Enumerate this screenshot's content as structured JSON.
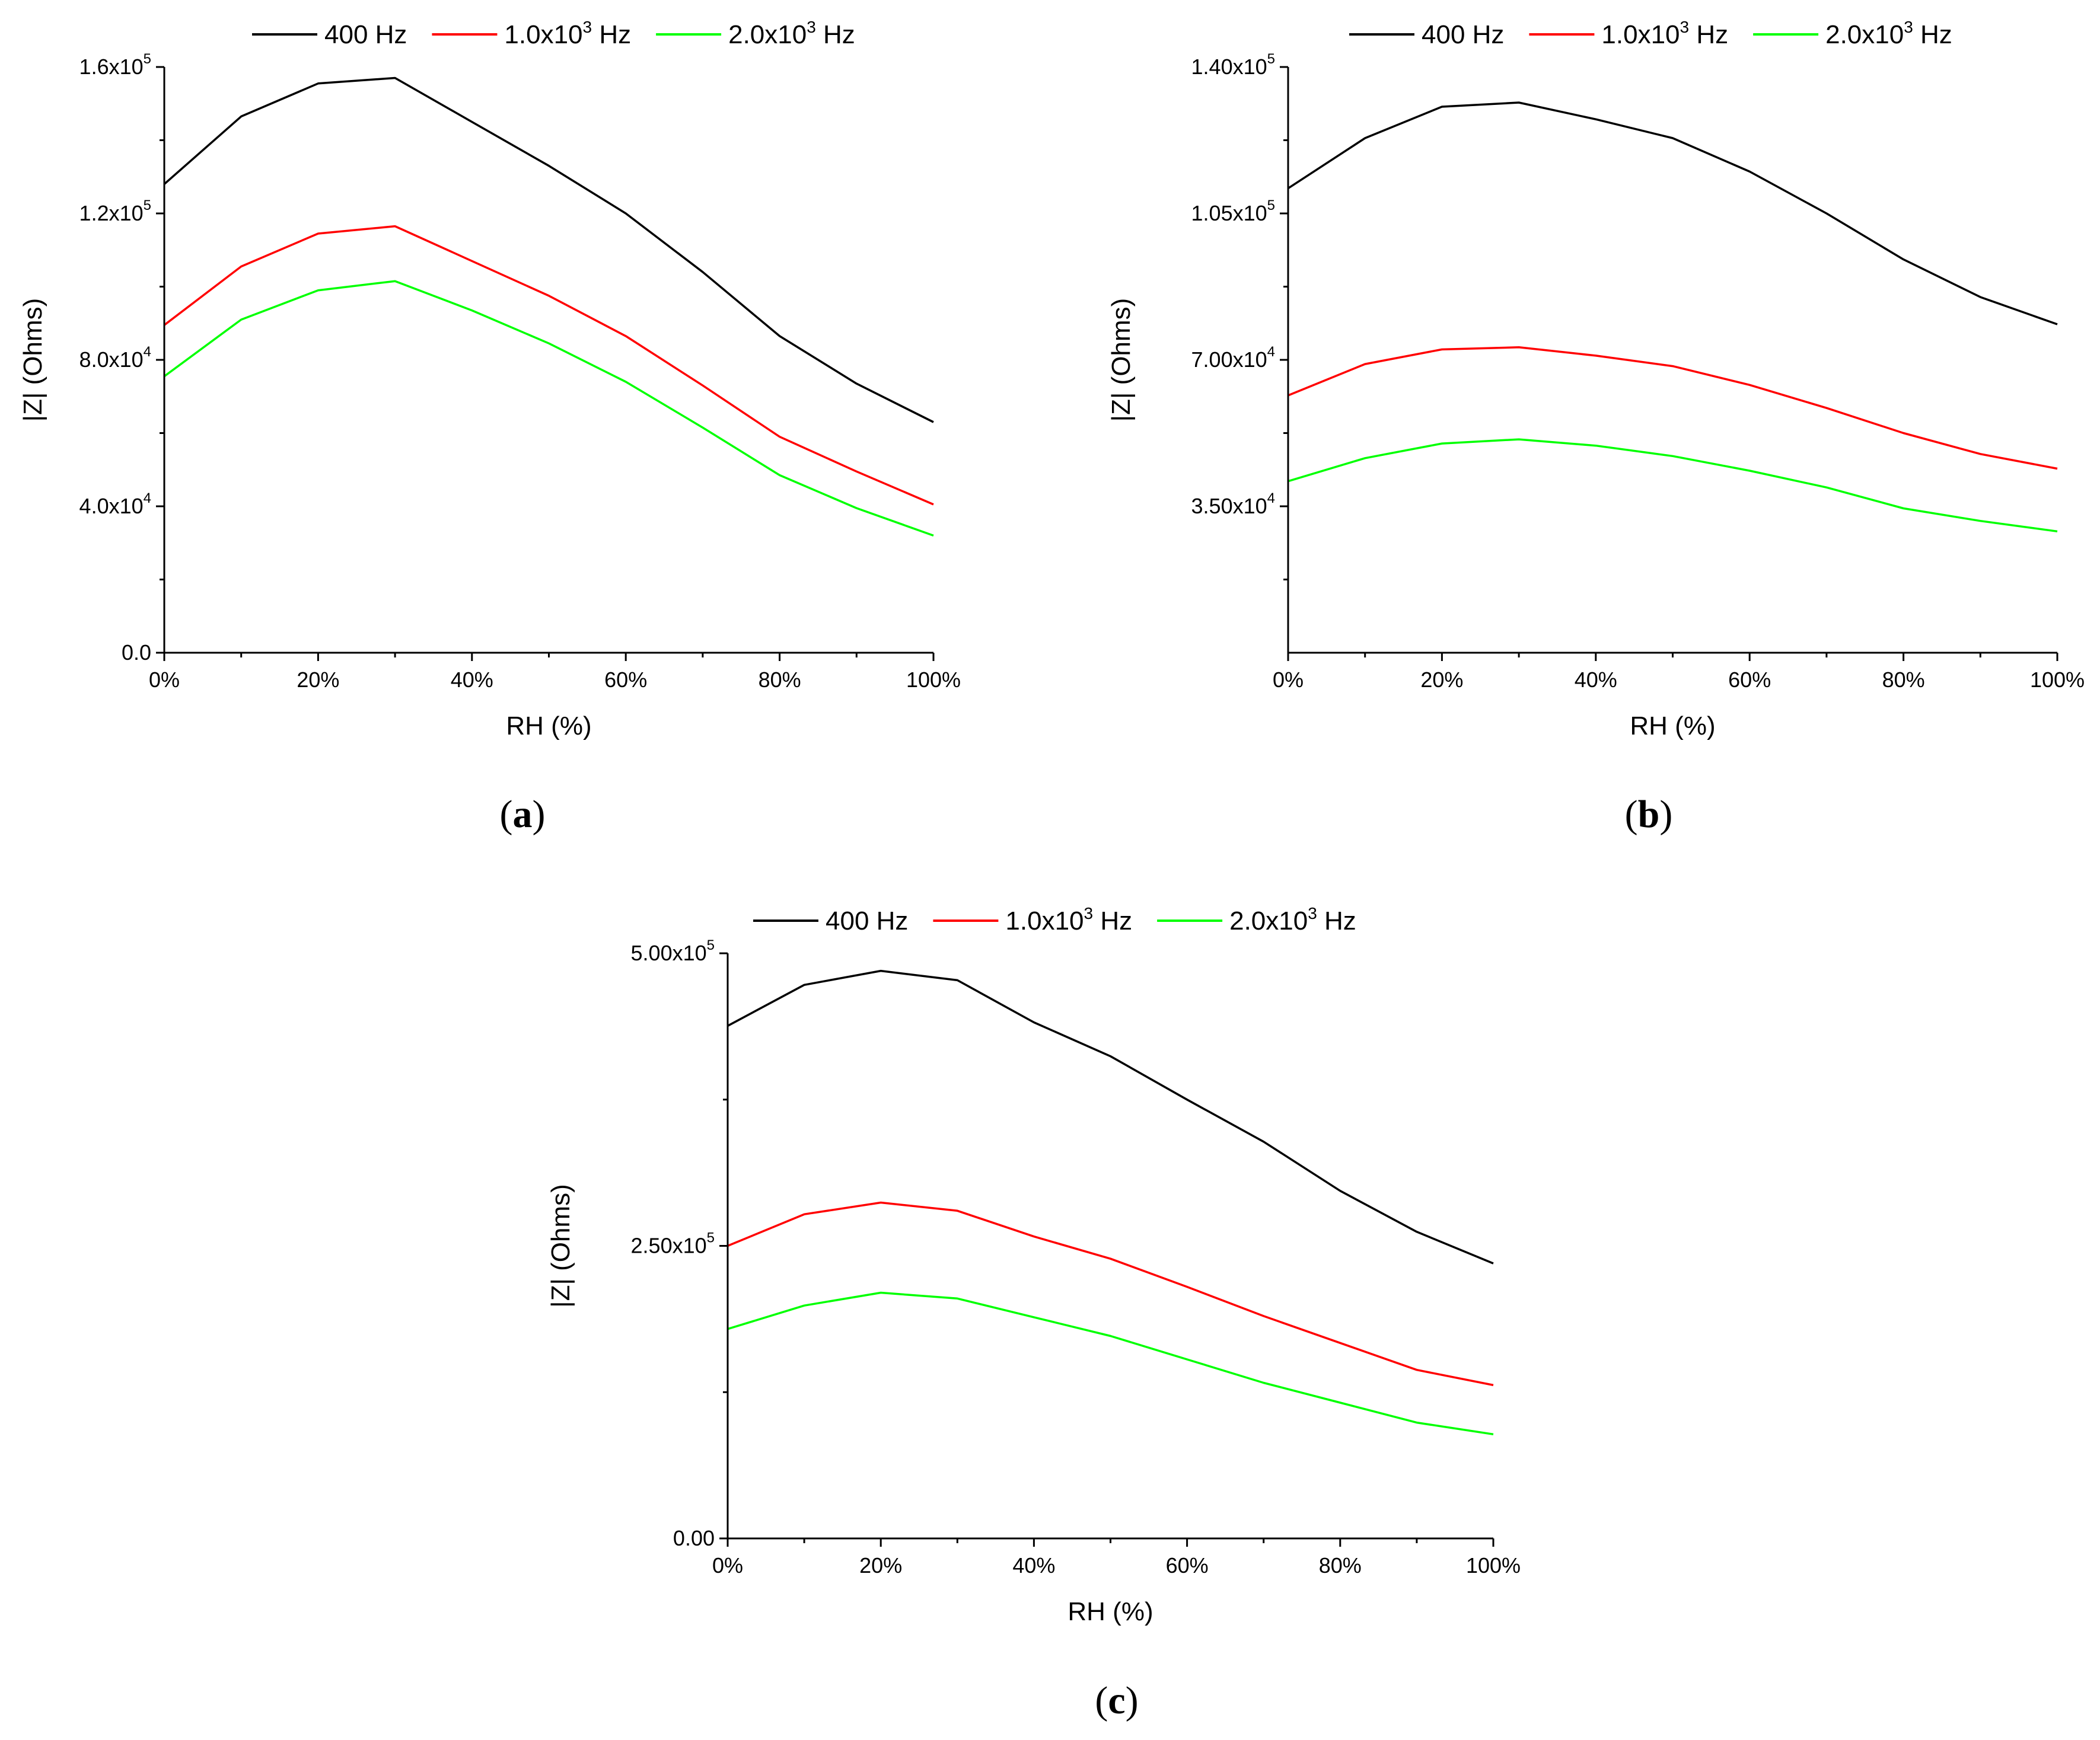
{
  "chart_data": [
    {
      "panel": "a",
      "type": "line",
      "xlabel": "RH (%)",
      "ylabel": "|Z| (Ohms)",
      "x": [
        0,
        10,
        20,
        30,
        40,
        50,
        60,
        70,
        80,
        90,
        100
      ],
      "x_tick_values": [
        0,
        20,
        40,
        60,
        80,
        100
      ],
      "x_tick_labels": [
        "0%",
        "20%",
        "40%",
        "60%",
        "80%",
        "100%"
      ],
      "xlim": [
        0,
        100
      ],
      "ylim": [
        0,
        160000
      ],
      "y_ticks": [
        {
          "value": 0,
          "mantissa": "0.0",
          "exp": ""
        },
        {
          "value": 40000,
          "mantissa": "4.0x10",
          "exp": "4"
        },
        {
          "value": 80000,
          "mantissa": "8.0x10",
          "exp": "4"
        },
        {
          "value": 120000,
          "mantissa": "1.2x10",
          "exp": "5"
        },
        {
          "value": 160000,
          "mantissa": "1.6x10",
          "exp": "5"
        }
      ],
      "series": [
        {
          "name": "400 Hz",
          "color": "#000000",
          "values": [
            128000,
            146500,
            155500,
            157000,
            145000,
            133000,
            120000,
            104000,
            86500,
            73500,
            63000
          ]
        },
        {
          "name": "1.0x10^3 Hz",
          "color": "#ff0000",
          "values": [
            89500,
            105500,
            114500,
            116500,
            107000,
            97500,
            86500,
            73000,
            59000,
            49500,
            40500
          ]
        },
        {
          "name": "2.0x10^3 Hz",
          "color": "#00ff00",
          "values": [
            75500,
            91000,
            99000,
            101500,
            93500,
            84500,
            74000,
            61500,
            48500,
            39500,
            32000
          ]
        }
      ]
    },
    {
      "panel": "b",
      "type": "line",
      "xlabel": "RH (%)",
      "ylabel": "|Z| (Ohms)",
      "x": [
        0,
        10,
        20,
        30,
        40,
        50,
        60,
        70,
        80,
        90,
        100
      ],
      "x_tick_values": [
        0,
        20,
        40,
        60,
        80,
        100
      ],
      "x_tick_labels": [
        "0%",
        "20%",
        "40%",
        "60%",
        "80%",
        "100%"
      ],
      "xlim": [
        0,
        100
      ],
      "ylim": [
        0,
        140000
      ],
      "y_ticks": [
        {
          "value": 35000,
          "mantissa": "3.50x10",
          "exp": "4"
        },
        {
          "value": 70000,
          "mantissa": "7.00x10",
          "exp": "4"
        },
        {
          "value": 105000,
          "mantissa": "1.05x10",
          "exp": "5"
        },
        {
          "value": 140000,
          "mantissa": "1.40x10",
          "exp": "5"
        }
      ],
      "series": [
        {
          "name": "400 Hz",
          "color": "#000000",
          "values": [
            111000,
            123000,
            130500,
            131500,
            127500,
            123000,
            115000,
            105000,
            94000,
            85000,
            78500
          ]
        },
        {
          "name": "1.0x10^3 Hz",
          "color": "#ff0000",
          "values": [
            61500,
            69000,
            72500,
            73000,
            71000,
            68500,
            64000,
            58500,
            52500,
            47500,
            44000
          ]
        },
        {
          "name": "2.0x10^3 Hz",
          "color": "#00ff00",
          "values": [
            41000,
            46500,
            50000,
            51000,
            49500,
            47000,
            43500,
            39500,
            34500,
            31500,
            29000
          ]
        }
      ]
    },
    {
      "panel": "c",
      "type": "line",
      "xlabel": "RH (%)",
      "ylabel": "|Z| (Ohms)",
      "x": [
        0,
        10,
        20,
        30,
        40,
        50,
        60,
        70,
        80,
        90,
        100
      ],
      "x_tick_values": [
        0,
        20,
        40,
        60,
        80,
        100
      ],
      "x_tick_labels": [
        "0%",
        "20%",
        "40%",
        "60%",
        "80%",
        "100%"
      ],
      "xlim": [
        0,
        100
      ],
      "ylim": [
        0,
        500000
      ],
      "y_ticks": [
        {
          "value": 0,
          "mantissa": "0.00",
          "exp": ""
        },
        {
          "value": 250000,
          "mantissa": "2.50x10",
          "exp": "5"
        },
        {
          "value": 500000,
          "mantissa": "5.00x10",
          "exp": "5"
        }
      ],
      "series": [
        {
          "name": "400 Hz",
          "color": "#000000",
          "values": [
            438000,
            473000,
            485000,
            477000,
            441000,
            412000,
            375000,
            339000,
            297000,
            262000,
            235000
          ]
        },
        {
          "name": "1.0x10^3 Hz",
          "color": "#ff0000",
          "values": [
            250000,
            277000,
            287000,
            280000,
            258000,
            239000,
            215000,
            190000,
            167000,
            144000,
            131000
          ]
        },
        {
          "name": "2.0x10^3 Hz",
          "color": "#00ff00",
          "values": [
            179000,
            199000,
            210000,
            205000,
            189000,
            173000,
            153000,
            133000,
            116000,
            99000,
            89000
          ]
        }
      ]
    }
  ],
  "legend": {
    "entries": [
      {
        "base": "400 Hz",
        "sup": "",
        "tail": ""
      },
      {
        "base": "1.0x10",
        "sup": "3",
        "tail": " Hz"
      },
      {
        "base": "2.0x10",
        "sup": "3",
        "tail": " Hz"
      }
    ]
  },
  "panel_labels": [
    {
      "open": "(",
      "letter": "a",
      "close": ")"
    },
    {
      "open": "(",
      "letter": "b",
      "close": ")"
    },
    {
      "open": "(",
      "letter": "c",
      "close": ")"
    }
  ]
}
